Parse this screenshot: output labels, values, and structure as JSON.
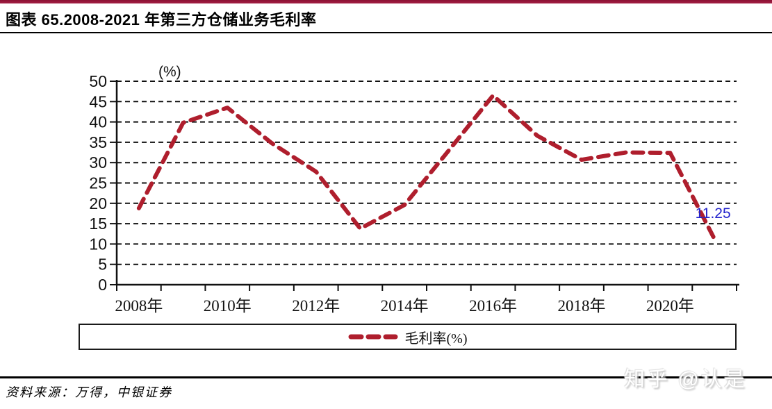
{
  "header": {
    "title": "图表 65.2008-2021 年第三方仓储业务毛利率"
  },
  "chart_data": {
    "type": "line",
    "title": "2008-2021 年第三方仓储业务毛利率",
    "ylabel": "(%)",
    "xlabel": "",
    "ylim": [
      0,
      50
    ],
    "y_step": 5,
    "grid": "horizontal-dashed",
    "legend_position": "bottom-box",
    "years": [
      2008,
      2009,
      2010,
      2011,
      2012,
      2013,
      2014,
      2015,
      2016,
      2017,
      2018,
      2019,
      2020,
      2021
    ],
    "x_label_every": 2,
    "x_label_suffix": "年",
    "series": [
      {
        "name": "毛利率(%)",
        "values": [
          18.8,
          39.8,
          43.5,
          34.8,
          27.8,
          13.8,
          19.6,
          33.0,
          46.5,
          36.6,
          30.7,
          32.5,
          32.4,
          11.25
        ]
      }
    ],
    "line_color": "#AF1E2D",
    "line_style": "dashed",
    "last_value_label": "11.25",
    "last_value_label_color": "#2222CC"
  },
  "legend": {
    "label": "毛利率(%)"
  },
  "footer": {
    "source": "资料来源：万得，中银证券",
    "watermark": "知乎 @认是"
  }
}
